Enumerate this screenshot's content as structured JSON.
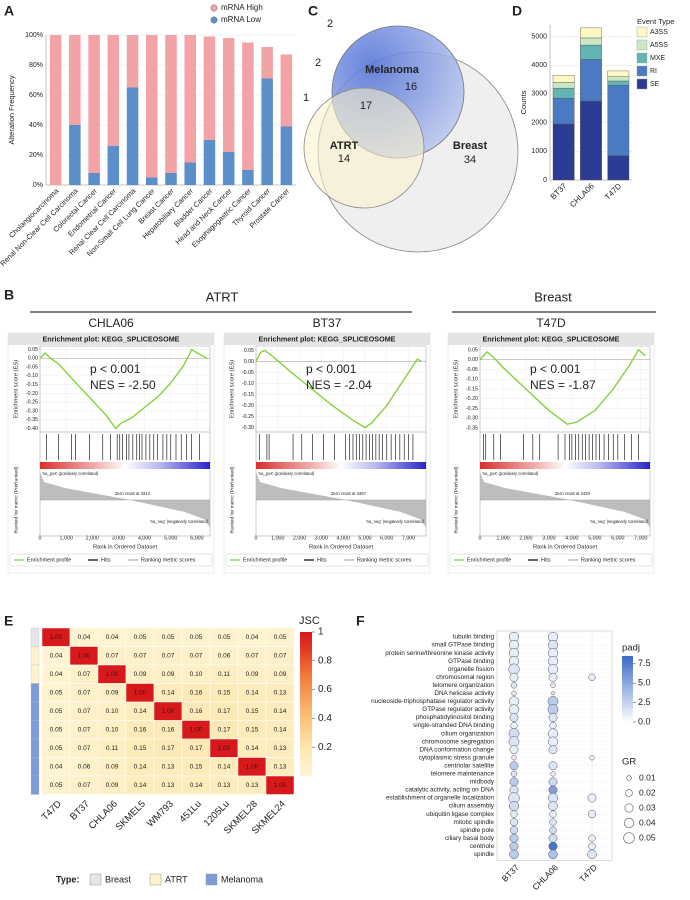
{
  "panels": [
    "A",
    "B",
    "C",
    "D",
    "E",
    "F"
  ],
  "panel_b_groups": [
    "ATRT",
    "Breast"
  ],
  "chart_data": [
    {
      "type": "stacked-bar",
      "ylabel": "Alteration Frequency",
      "categories": [
        "Cholangiocarcinoma",
        "Renal Non-Clear Cell Carcinoma",
        "Colorectal Cancer",
        "Endometrial Cancer",
        "Renal Clear Cell Carcinoma",
        "Non-Small Cell Lung Cancer",
        "Breast Cancer",
        "Hepatobiliary Cancer",
        "Bladder Cancer",
        "Head and Neck Cancer",
        "Esophagogastric Cancer",
        "Thyroid Cancer",
        "Prostate Cancer"
      ],
      "series": [
        {
          "name": "mRNA High",
          "color": "#f2a3a6",
          "values": [
            100,
            60,
            92,
            74,
            35,
            95,
            92,
            85,
            69,
            76,
            85,
            21,
            48
          ]
        },
        {
          "name": "mRNA Low",
          "color": "#5b8fc9",
          "values": [
            0,
            40,
            8,
            26,
            65,
            5,
            8,
            15,
            30,
            22,
            10,
            71,
            39
          ]
        }
      ],
      "ylim": [
        0,
        100
      ],
      "yticks": [
        {
          "value": 0,
          "label": "0%"
        },
        {
          "value": 20,
          "label": "20%"
        },
        {
          "value": 40,
          "label": "40%"
        },
        {
          "value": 60,
          "label": "60%"
        },
        {
          "value": 80,
          "label": "80%"
        },
        {
          "value": 100,
          "label": "100%"
        }
      ],
      "grid": true,
      "legend": "top-right"
    },
    {
      "type": "venn",
      "sets": [
        "Melanoma",
        "ATRT",
        "Breast"
      ],
      "colors": [
        "#5b7fd8",
        "#fbf2c8",
        "#efefef"
      ],
      "counts": [
        2,
        2,
        1,
        16,
        17,
        14,
        34
      ]
    },
    {
      "type": "stacked-bar",
      "ylabel": "Counts",
      "legend_title": "Event Type",
      "categories": [
        "BT37",
        "CHLA06",
        "T47D"
      ],
      "series": [
        {
          "name": "SE",
          "color": "#2b3a92",
          "values": [
            1950,
            2750,
            850
          ]
        },
        {
          "name": "RI",
          "color": "#4a7bc2",
          "values": [
            900,
            1450,
            2450
          ]
        },
        {
          "name": "MXE",
          "color": "#62b5b0",
          "values": [
            350,
            500,
            150
          ]
        },
        {
          "name": "A5SS",
          "color": "#c9e8c3",
          "values": [
            200,
            250,
            150
          ]
        },
        {
          "name": "A3SS",
          "color": "#fdf8c4",
          "values": [
            250,
            350,
            200
          ]
        }
      ],
      "ylim": [
        0,
        5400
      ],
      "yticks": [
        0,
        1000,
        2000,
        3000,
        4000,
        5000
      ],
      "grid": true,
      "legend": "right"
    },
    {
      "type": "gsea",
      "sample": "CHLA06",
      "title": "Enrichment plot: KEGG_SPLICEOSOME",
      "annotations": [
        "p < 0.001",
        "NES = -2.50"
      ],
      "ylabel": "Enrichment score (ES)",
      "ylabel2": "Ranked list metric (PreRanked)",
      "xlabel": "Rank in Ordered Dataset",
      "pos_label": "'na_pos' (positively correlated)",
      "neg_label": "'na_neg' (negatively correlated)",
      "zero_cross": "Zero cross at 3312",
      "legend": [
        "Enrichment profile",
        "Hits",
        "Ranking metric scores"
      ],
      "color": "#7ad12f",
      "x": [
        0,
        200,
        400,
        700,
        1000,
        1500,
        2000,
        2500,
        2900,
        3100,
        3500,
        4000,
        4500,
        5000,
        5500,
        5800,
        6000,
        6400
      ],
      "values": [
        0,
        0.03,
        0,
        -0.03,
        -0.08,
        -0.16,
        -0.24,
        -0.32,
        -0.4,
        -0.37,
        -0.34,
        -0.28,
        -0.22,
        -0.14,
        -0.04,
        0.05,
        0.03,
        0
      ],
      "hits": [
        250,
        700,
        1200,
        1350,
        1900,
        2400,
        2700,
        2950,
        3050,
        3150,
        3300,
        3400,
        3550,
        3700,
        3800,
        3900,
        4050,
        4200,
        4350,
        4500,
        4700,
        4850,
        5000,
        5200,
        5400,
        5600,
        5800,
        6100
      ],
      "xlim": [
        0,
        6500
      ],
      "xticks": [
        0,
        {
          "value": 1000,
          "label": "1,000"
        },
        {
          "value": 2000,
          "label": "2,000"
        },
        {
          "value": 3000,
          "label": "3,000"
        },
        {
          "value": 4000,
          "label": "4,000"
        },
        {
          "value": 5000,
          "label": "5,000"
        },
        {
          "value": 6000,
          "label": "6,000"
        }
      ],
      "ylim": [
        -0.42,
        0.07
      ],
      "yticks": [
        0.05,
        {
          "value": 0,
          "label": "0.00"
        },
        -0.05,
        {
          "value": -0.1,
          "label": "-0.10"
        },
        -0.15,
        {
          "value": -0.2,
          "label": "-0.20"
        },
        -0.25,
        {
          "value": -0.3,
          "label": "-0.30"
        },
        -0.35,
        {
          "value": -0.4,
          "label": "-0.40"
        }
      ]
    },
    {
      "type": "gsea",
      "sample": "BT37",
      "title": "Enrichment plot: KEGG_SPLICEOSOME",
      "annotations": [
        "p < 0.001",
        "NES = -2.04"
      ],
      "ylabel": "Enrichment score (ES)",
      "ylabel2": "Ranked list metric (PreRanked)",
      "xlabel": "Rank in Ordered Dataset",
      "pos_label": "'na_pos' (positively correlated)",
      "neg_label": "'na_neg' (negatively correlated)",
      "zero_cross": "Zero cross at 3457",
      "legend": [
        "Enrichment profile",
        "Hits",
        "Ranking metric scores"
      ],
      "color": "#7ad12f",
      "x": [
        0,
        200,
        400,
        800,
        1500,
        2500,
        3500,
        4500,
        5000,
        5300,
        6000,
        6800,
        7400,
        7600
      ],
      "values": [
        0,
        0.04,
        0.05,
        0.02,
        -0.04,
        -0.12,
        -0.2,
        -0.27,
        -0.3,
        -0.28,
        -0.2,
        -0.08,
        0.01,
        0
      ],
      "hits": [
        150,
        500,
        600,
        1700,
        2100,
        2600,
        3100,
        3600,
        4100,
        4300,
        4450,
        4600,
        4750,
        4900,
        5050,
        5200,
        5350,
        5500,
        5650,
        5800,
        6000,
        6200,
        6400,
        6600,
        6800,
        7000,
        7200
      ],
      "xlim": [
        0,
        7800
      ],
      "xticks": [
        0,
        {
          "value": 1000,
          "label": "1,000"
        },
        {
          "value": 2000,
          "label": "2,000"
        },
        {
          "value": 3000,
          "label": "3,000"
        },
        {
          "value": 4000,
          "label": "4,000"
        },
        {
          "value": 5000,
          "label": "5,000"
        },
        {
          "value": 6000,
          "label": "6,000"
        },
        {
          "value": 7000,
          "label": "7,000"
        }
      ],
      "ylim": [
        -0.32,
        0.07
      ],
      "yticks": [
        0.05,
        {
          "value": 0,
          "label": "0.00"
        },
        -0.05,
        {
          "value": -0.1,
          "label": "-0.10"
        },
        -0.15,
        {
          "value": -0.2,
          "label": "-0.20"
        },
        -0.25,
        {
          "value": -0.3,
          "label": "-0.30"
        }
      ]
    },
    {
      "type": "gsea",
      "sample": "T47D",
      "title": "Enrichment plot: KEGG_SPLICEOSOME",
      "annotations": [
        "p < 0.001",
        "NES = -1.87"
      ],
      "ylabel": "Enrichment score (ES)",
      "ylabel2": "Ranked list metric (PreRanked)",
      "xlabel": "Rank in Ordered Dataset",
      "pos_label": "'na_pos' (positively correlated)",
      "neg_label": "'na_neg' (negatively correlated)",
      "zero_cross": "Zero cross at 2420",
      "legend": [
        "Enrichment profile",
        "Hits",
        "Ranking metric scores"
      ],
      "color": "#7ad12f",
      "x": [
        0,
        300,
        600,
        1000,
        2000,
        3000,
        3800,
        4200,
        5000,
        5800,
        6500,
        6900,
        7200
      ],
      "values": [
        0,
        0.04,
        0.01,
        -0.04,
        -0.15,
        -0.26,
        -0.33,
        -0.32,
        -0.26,
        -0.15,
        -0.03,
        0.05,
        0.02
      ],
      "hits": [
        150,
        250,
        600,
        900,
        1900,
        2300,
        2600,
        3400,
        3700,
        3900,
        4000,
        4150,
        4300,
        4450,
        4600,
        4750,
        4900,
        5050,
        5200,
        5400,
        5600,
        5800,
        6000,
        6300,
        6600,
        6900
      ],
      "xlim": [
        0,
        7400
      ],
      "xticks": [
        0,
        {
          "value": 1000,
          "label": "1,000"
        },
        {
          "value": 2000,
          "label": "2,000"
        },
        {
          "value": 3000,
          "label": "3,000"
        },
        {
          "value": 4000,
          "label": "4,000"
        },
        {
          "value": 5000,
          "label": "5,000"
        },
        {
          "value": 6000,
          "label": "6,000"
        },
        {
          "value": 7000,
          "label": "7,000"
        }
      ],
      "ylim": [
        -0.37,
        0.07
      ],
      "yticks": [
        0.05,
        {
          "value": 0,
          "label": "0.00"
        },
        -0.05,
        {
          "value": -0.1,
          "label": "-0.10"
        },
        -0.15,
        {
          "value": -0.2,
          "label": "-0.20"
        },
        -0.25,
        {
          "value": -0.3,
          "label": "-0.30"
        },
        -0.35
      ]
    },
    {
      "type": "heatmap",
      "labels": [
        "T47D",
        "BT37",
        "CHLA06",
        "SKMEL5",
        "WM793",
        "451Lu",
        "1205Lu",
        "SKMEL28",
        "SKMEL24"
      ],
      "values": [
        [
          1,
          0.04,
          0.04,
          0.05,
          0.05,
          0.05,
          0.05,
          0.04,
          0.05
        ],
        [
          0.04,
          1,
          0.07,
          0.07,
          0.07,
          0.07,
          0.06,
          0.07,
          0.07
        ],
        [
          0.04,
          0.07,
          1,
          0.09,
          0.09,
          0.1,
          0.11,
          0.09,
          0.09
        ],
        [
          0.05,
          0.07,
          0.09,
          1,
          0.14,
          0.16,
          0.15,
          0.14,
          0.13
        ],
        [
          0.05,
          0.07,
          0.1,
          0.14,
          1,
          0.16,
          0.17,
          0.15,
          0.14
        ],
        [
          0.05,
          0.07,
          0.1,
          0.16,
          0.16,
          1,
          0.17,
          0.15,
          0.14
        ],
        [
          0.05,
          0.07,
          0.11,
          0.15,
          0.17,
          0.17,
          1,
          0.14,
          0.13
        ],
        [
          0.04,
          0.06,
          0.09,
          0.14,
          0.13,
          0.15,
          0.14,
          1,
          0.13
        ],
        [
          0.05,
          0.07,
          0.09,
          0.14,
          0.13,
          0.14,
          0.13,
          0.13,
          1
        ]
      ],
      "value_labels": [
        [
          "1.00",
          "0.04",
          "0.04",
          "0.05",
          "0.05",
          "0.05",
          "0.05",
          "0.04",
          "0.05"
        ],
        [
          "0.04",
          "1.00",
          "0.07",
          "0.07",
          "0.07",
          "0.07",
          "0.06",
          "0.07",
          "0.07"
        ],
        [
          "0.04",
          "0.07",
          "1.00",
          "0.09",
          "0.09",
          "0.10",
          "0.11",
          "0.09",
          "0.09"
        ],
        [
          "0.05",
          "0.07",
          "0.09",
          "1.00",
          "0.14",
          "0.16",
          "0.15",
          "0.14",
          "0.13"
        ],
        [
          "0.05",
          "0.07",
          "0.10",
          "0.14",
          "1.00",
          "0.16",
          "0.17",
          "0.15",
          "0.14"
        ],
        [
          "0.05",
          "0.07",
          "0.10",
          "0.16",
          "0.16",
          "1.00",
          "0.17",
          "0.15",
          "0.14"
        ],
        [
          "0.05",
          "0.07",
          "0.11",
          "0.15",
          "0.17",
          "0.17",
          "1.00",
          "0.14",
          "0.13"
        ],
        [
          "0.04",
          "0.06",
          "0.09",
          "0.14",
          "0.13",
          "0.15",
          "0.14",
          "1.00",
          "0.13"
        ],
        [
          "0.05",
          "0.07",
          "0.09",
          "0.14",
          "0.13",
          "0.14",
          "0.13",
          "0.13",
          "1.00"
        ]
      ],
      "colorbar_title": "JSC",
      "clim": [
        0,
        1
      ],
      "cticks": [
        1,
        0.8,
        0.6,
        0.4,
        0.2
      ],
      "type_title": "Type:",
      "types": [
        "Breast",
        "ATRT",
        "Melanoma"
      ],
      "type_colors": [
        "#e6e6e6",
        "#fcf2cc",
        "#7d9bd9"
      ],
      "row_types": [
        0,
        1,
        1,
        2,
        2,
        2,
        2,
        2,
        2
      ]
    },
    {
      "type": "dot",
      "terms": [
        "tubulin binding",
        "small GTPase binding",
        "protein serine/threonine kinase activity",
        "GTPase binding",
        "organelle fission",
        "chromosomal region",
        "telomere organization",
        "DNA helicase activity",
        "nucleoside-triphosphatase regulator activity",
        "GTPase regulator activity",
        "phosphatidylinositol binding",
        "single-stranded DNA binding",
        "cilium organization",
        "chromosome segregation",
        "DNA conformation change",
        "cytoplasmic stress granule",
        "centriolar satellite",
        "telomere maintenance",
        "midbody",
        "catalytic activity, acting on DNA",
        "establishment of organelle localization",
        "cilium assembly",
        "ubiquitin ligase complex",
        "mitotic spindle",
        "spindle pole",
        "ciliary basal body",
        "centriole",
        "spindle"
      ],
      "series": [
        {
          "name": "BT37",
          "gr": [
            0.04,
            0.04,
            0.04,
            0.04,
            0.05,
            0.03,
            0.015,
            0.01,
            0.04,
            0.04,
            0.03,
            0.02,
            0.045,
            0.045,
            0.03,
            0.01,
            0.03,
            0.015,
            0.03,
            0.03,
            0.05,
            0.04,
            0.02,
            0.025,
            0.025,
            0.03,
            0.03,
            0.035
          ],
          "padj": [
            1,
            1,
            1,
            1,
            1.5,
            1,
            1.5,
            1,
            1,
            1,
            1.5,
            1,
            2,
            1.5,
            1,
            1,
            3,
            1.5,
            3,
            1.5,
            1.5,
            2,
            1,
            1.5,
            2,
            3,
            3,
            3
          ]
        },
        {
          "name": "CHLA06",
          "gr": [
            0.04,
            0.04,
            0.04,
            0.04,
            0.04,
            0.03,
            0.01,
            0.005,
            0.045,
            0.045,
            0.03,
            0.02,
            0.04,
            0.04,
            0.03,
            null,
            0.03,
            0.01,
            0.03,
            0.03,
            0.04,
            0.035,
            0.02,
            0.02,
            0.02,
            0.03,
            0.03,
            0.035
          ],
          "padj": [
            1,
            1.5,
            1,
            1,
            1,
            1,
            1,
            1,
            3,
            3,
            1.5,
            1,
            1,
            1,
            1.5,
            null,
            1.5,
            1,
            2,
            5.5,
            1.5,
            1.5,
            1,
            1.5,
            2,
            2,
            8,
            3.5
          ]
        },
        {
          "name": "T47D",
          "gr": [
            null,
            null,
            null,
            null,
            null,
            0.02,
            null,
            null,
            null,
            null,
            null,
            null,
            null,
            null,
            null,
            0.01,
            null,
            null,
            null,
            null,
            0.03,
            null,
            0.025,
            null,
            null,
            0.02,
            0.02,
            0.035
          ],
          "padj": [
            null,
            null,
            null,
            null,
            null,
            1,
            null,
            null,
            null,
            null,
            null,
            null,
            null,
            null,
            null,
            1,
            null,
            null,
            null,
            null,
            1,
            null,
            1,
            null,
            null,
            1,
            1,
            1.5
          ]
        }
      ],
      "padj_title": "padj",
      "padj_lim": [
        0,
        8.5
      ],
      "padj_ticks": [
        7.5,
        {
          "value": 5,
          "label": "5.0"
        },
        2.5,
        {
          "value": 0,
          "label": "0.0"
        }
      ],
      "gr_title": "GR",
      "gr_ticks": [
        0.01,
        0.02,
        0.03,
        0.04,
        0.05
      ]
    }
  ]
}
